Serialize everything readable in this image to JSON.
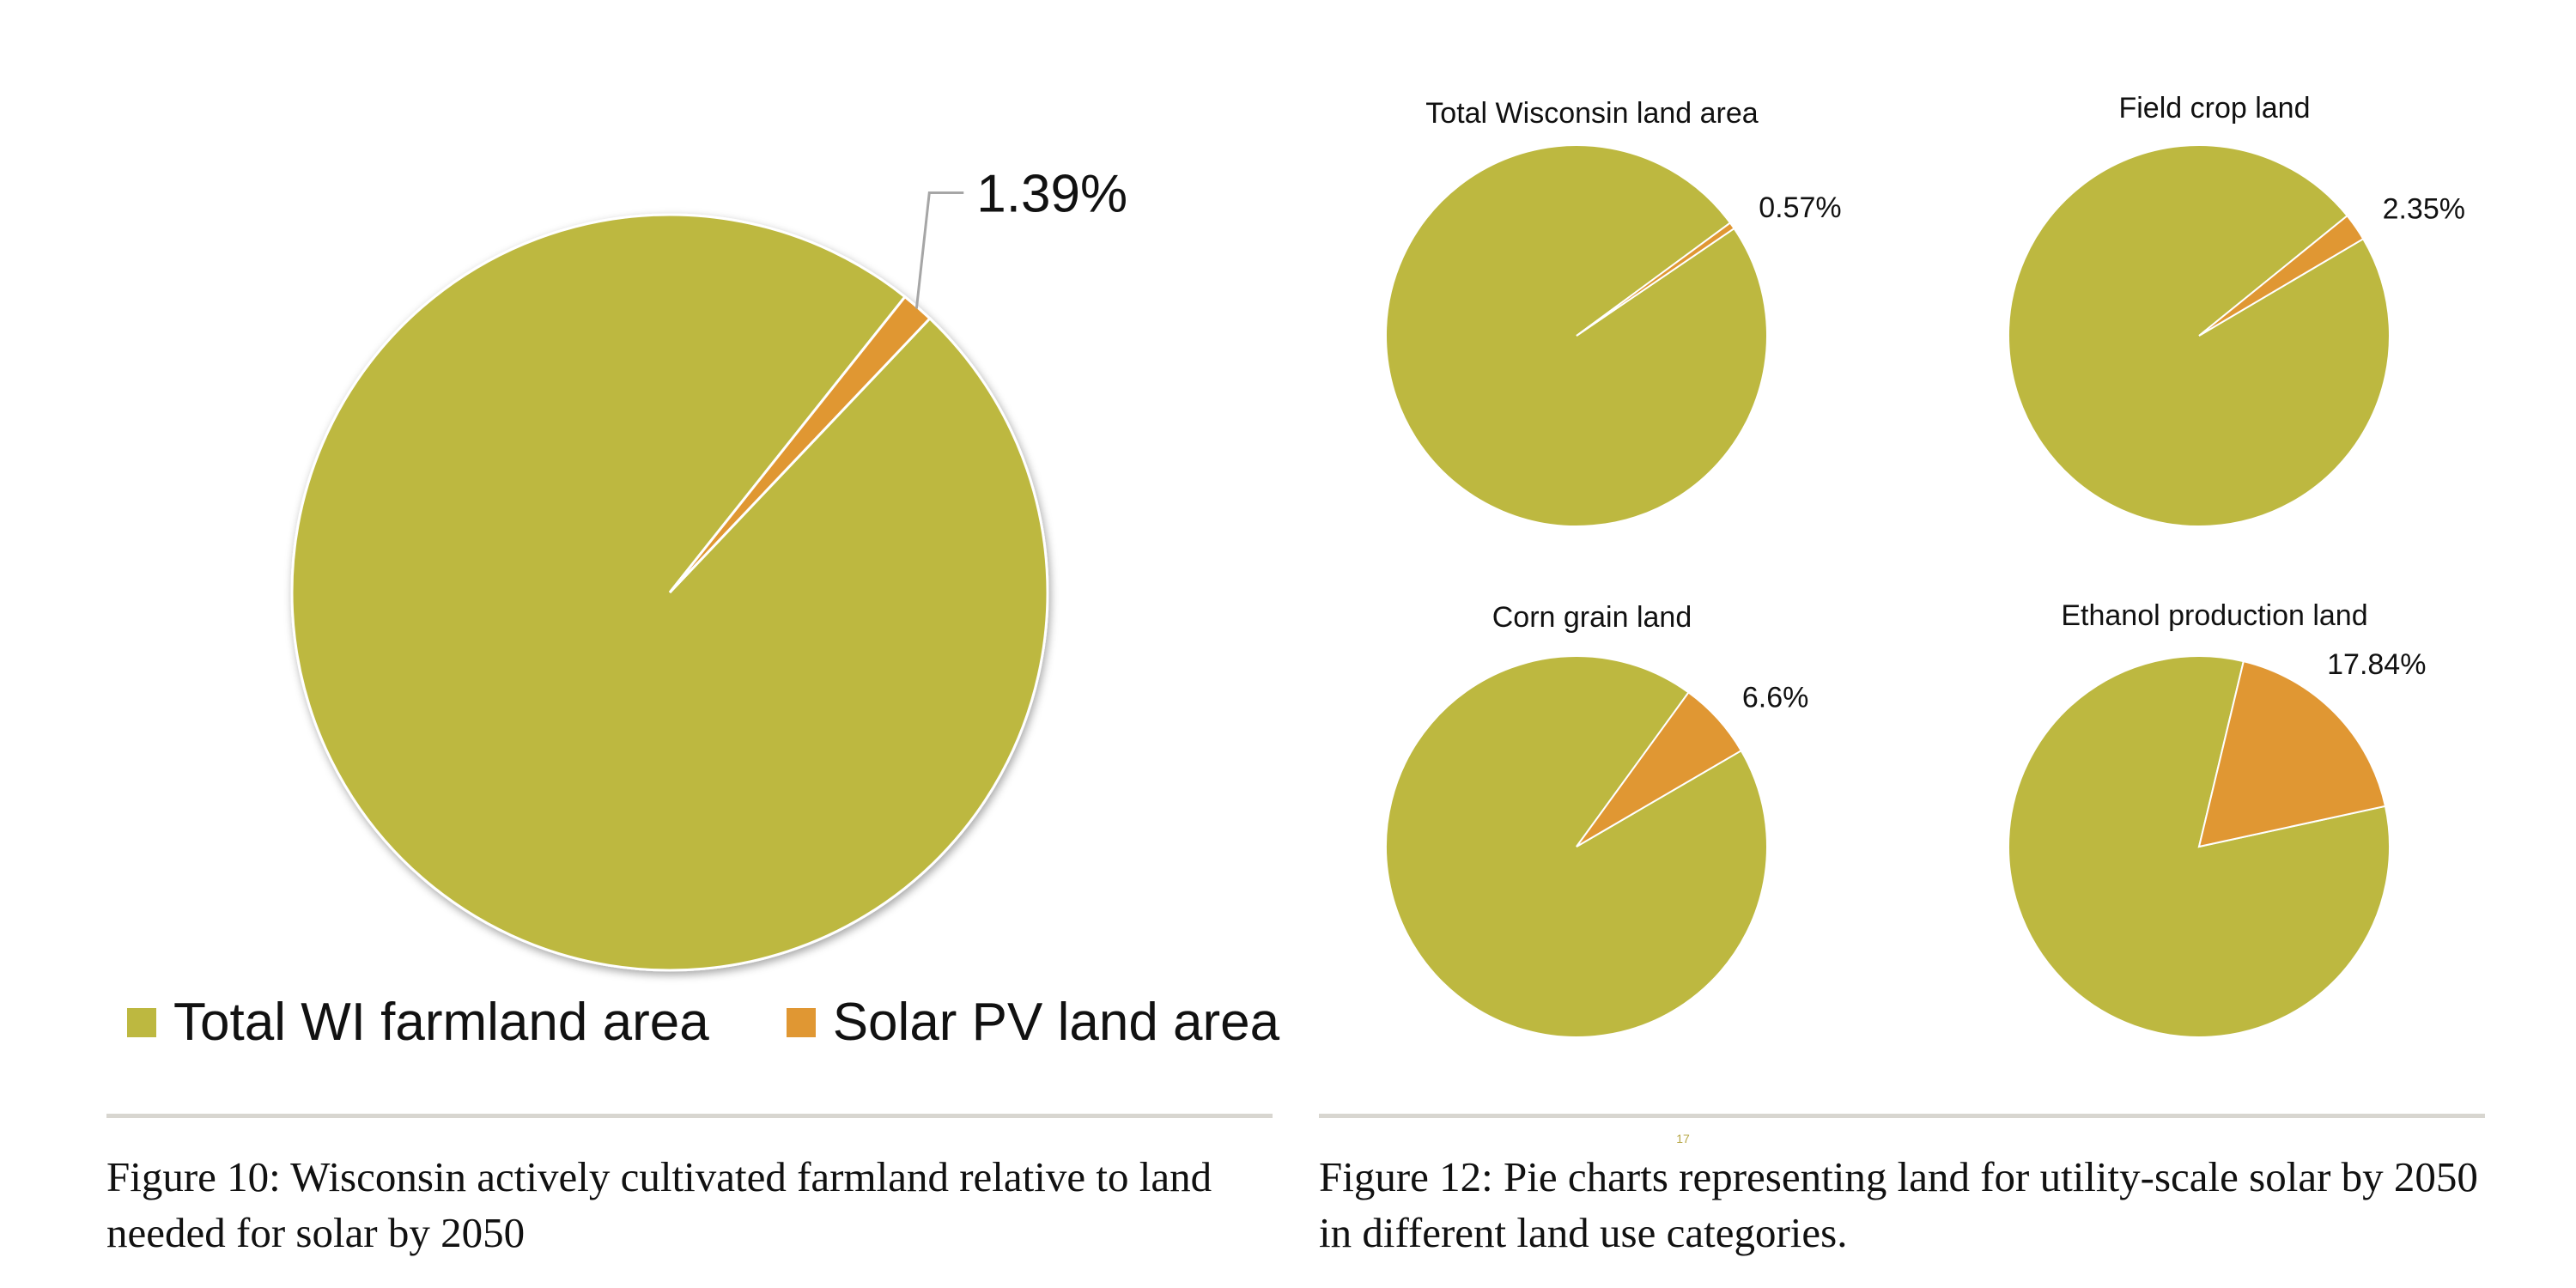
{
  "chart_data": [
    {
      "type": "pie",
      "title": "",
      "slices": [
        {
          "label": "Total WI farmland area",
          "value": 98.61,
          "color": "#bdb840"
        },
        {
          "label": "Solar PV land area",
          "value": 1.39,
          "color": "#e09733"
        }
      ],
      "data_labels": [
        "1.39%"
      ],
      "legend": {
        "placement": "bottom",
        "entries": [
          {
            "label": "Total WI farmland area",
            "color": "#bdb840"
          },
          {
            "label": "Solar PV land area",
            "color": "#e09733"
          }
        ]
      }
    },
    {
      "type": "pie",
      "title": "Total Wisconsin land area",
      "slices": [
        {
          "label": "",
          "value": 99.43,
          "color": "#bdb840"
        },
        {
          "label": "",
          "value": 0.57,
          "color": "#e09733"
        }
      ],
      "data_labels": [
        "0.57%"
      ]
    },
    {
      "type": "pie",
      "title": "Field crop land",
      "slices": [
        {
          "label": "",
          "value": 97.65,
          "color": "#bdb840"
        },
        {
          "label": "",
          "value": 2.35,
          "color": "#e09733"
        }
      ],
      "data_labels": [
        "2.35%"
      ]
    },
    {
      "type": "pie",
      "title": "Corn grain land",
      "slices": [
        {
          "label": "",
          "value": 93.4,
          "color": "#bdb840"
        },
        {
          "label": "",
          "value": 6.6,
          "color": "#e09733"
        }
      ],
      "data_labels": [
        "6.6%"
      ]
    },
    {
      "type": "pie",
      "title": "Ethanol production land",
      "slices": [
        {
          "label": "",
          "value": 82.16,
          "color": "#bdb840"
        },
        {
          "label": "",
          "value": 17.84,
          "color": "#e09733"
        }
      ],
      "data_labels": [
        "17.84%"
      ]
    }
  ],
  "legend": {
    "farmland_label": "Total WI farmland area",
    "solar_label": "Solar PV land area"
  },
  "captions": {
    "left": "Figure 10: Wisconsin actively cultivated farmland relative to land needed for solar by 2050",
    "right": "Figure 12: Pie charts representing land for utility-scale solar by 2050 in different land use categories."
  },
  "page_number": "17",
  "colors": {
    "olive": "#bdb840",
    "orange": "#e09733",
    "rule": "#d8d6d0"
  }
}
